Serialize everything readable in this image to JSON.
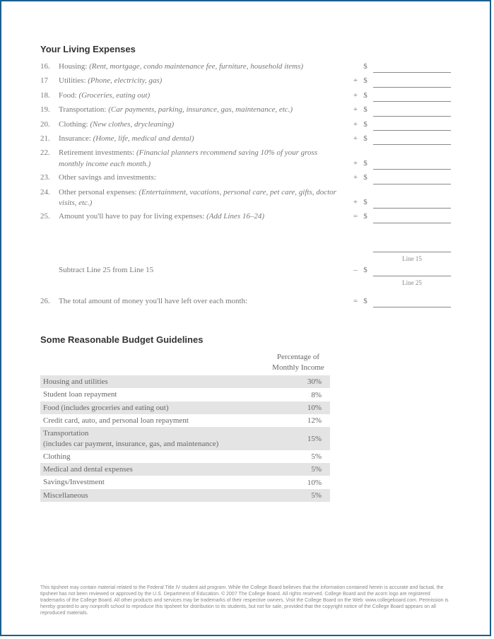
{
  "section1_title": "Your Living Expenses",
  "lines": [
    {
      "num": "16.",
      "label": "Housing: ",
      "desc": "(Rent, mortgage, condo maintenance fee, furniture, household items)",
      "op": ""
    },
    {
      "num": "17",
      "label": "Utilities: ",
      "desc": "(Phone, electricity, gas)",
      "op": "+"
    },
    {
      "num": "18.",
      "label": "Food: ",
      "desc": "(Groceries, eating out)",
      "op": "+"
    },
    {
      "num": "19.",
      "label": "Transportation: ",
      "desc": "(Car payments, parking, insurance, gas, maintenance, etc.)",
      "op": "+"
    },
    {
      "num": "20.",
      "label": "Clothing: ",
      "desc": "(New clothes, drycleaning)",
      "op": "+"
    },
    {
      "num": "21.",
      "label": "Insurance: ",
      "desc": "(Home, life, medical and dental)",
      "op": "+"
    },
    {
      "num": "22.",
      "label": "Retirement investments: ",
      "desc": "(Financial planners recommend saving 10% of your gross monthly income each month.)",
      "op": "+"
    },
    {
      "num": "23.",
      "label": "Other savings and investments:",
      "desc": "",
      "op": "+"
    },
    {
      "num": "24.",
      "label": "Other personal expenses: ",
      "desc": "(Entertainment, vacations, personal care, pet care, gifts, doctor visits, etc.)",
      "op": "+"
    },
    {
      "num": "25.",
      "label": "Amount you'll have to pay for living expenses: ",
      "desc": "(Add Lines 16–24)",
      "op": "="
    }
  ],
  "caption_line15": "Line 15",
  "subtract_label": "Subtract Line 25 from Line 15",
  "subtract_op": "–",
  "caption_line25": "Line 25",
  "line26_num": "26.",
  "line26_label": "The total amount of money you'll have left over each month:",
  "line26_op": "=",
  "dollar": "$",
  "section2_title": "Some Reasonable Budget Guidelines",
  "guide_header_pct": "Percentage of Monthly Income",
  "guidelines": [
    {
      "cat": "Housing and utilities",
      "pct": "30%",
      "shade": true
    },
    {
      "cat": "Student loan repayment",
      "pct": "8%",
      "shade": false
    },
    {
      "cat": "Food (includes groceries and eating out)",
      "pct": "10%",
      "shade": true
    },
    {
      "cat": "Credit card, auto, and personal loan repayment",
      "pct": "12%",
      "shade": false
    },
    {
      "cat": "Transportation\n(includes car payment, insurance, gas, and maintenance)",
      "pct": "15%",
      "shade": true
    },
    {
      "cat": "Clothing",
      "pct": "5%",
      "shade": false
    },
    {
      "cat": "Medical and dental expenses",
      "pct": "5%",
      "shade": true
    },
    {
      "cat": "Savings/Investment",
      "pct": "10%",
      "shade": false
    },
    {
      "cat": "Miscellaneous",
      "pct": "5%",
      "shade": true
    }
  ],
  "footer": "This tipsheet may contain material related to the Federal Title IV student aid program. While the College Board believes that the information contained herein is accurate and factual, the tipsheet has not been reviewed or approved by the U.S. Department of Education. © 2007 The College Board. All rights reserved. College Board and the acorn logo are registered trademarks of the College Board. All other products and services may be trademarks of their respective owners. Visit the College Board on the Web: www.collegeboard.com. Permission is hereby granted to any nonprofit school to reproduce this tipsheet for distribution to its students, but not for sale, provided that the copyright notice of the College Board appears on all reproduced materials."
}
